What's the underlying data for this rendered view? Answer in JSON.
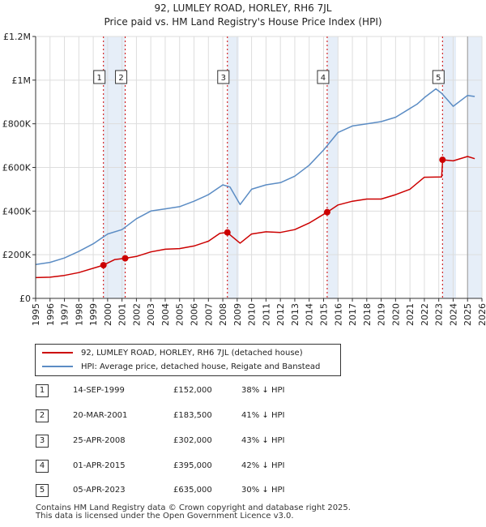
{
  "title": "92, LUMLEY ROAD, HORLEY, RH6 7JL",
  "subtitle": "Price paid vs. HM Land Registry's House Price Index (HPI)",
  "colors": {
    "property": "#cc0000",
    "hpi": "#5b8cc4",
    "shade": "#e6eef8",
    "grid": "#dddddd"
  },
  "chart_data": {
    "type": "line",
    "title": "92, LUMLEY ROAD, HORLEY, RH6 7JL",
    "x_range": [
      1995,
      2026
    ],
    "ylim": [
      0,
      1200000
    ],
    "y_ticks": [
      0,
      200000,
      400000,
      600000,
      800000,
      1000000,
      1200000
    ],
    "y_tick_labels": [
      "£0",
      "£200K",
      "£400K",
      "£600K",
      "£800K",
      "£1M",
      "£1.2M"
    ],
    "x_ticks": [
      1995,
      1996,
      1997,
      1998,
      1999,
      2000,
      2001,
      2002,
      2003,
      2004,
      2005,
      2006,
      2007,
      2008,
      2009,
      2010,
      2011,
      2012,
      2013,
      2014,
      2015,
      2016,
      2017,
      2018,
      2019,
      2020,
      2021,
      2022,
      2023,
      2024,
      2025,
      2026
    ],
    "grid": true,
    "series": [
      {
        "name": "92, LUMLEY ROAD, HORLEY, RH6 7JL (detached house)",
        "x": [
          1995,
          1996,
          1997,
          1998,
          1999.7,
          2000.5,
          2001.2,
          2002,
          2003,
          2004,
          2005,
          2006,
          2007,
          2007.8,
          2008.3,
          2009.2,
          2010,
          2011,
          2012,
          2013,
          2014,
          2015.25,
          2016,
          2017,
          2018,
          2019,
          2020,
          2021,
          2022,
          2023.2,
          2023.27,
          2024,
          2025,
          2025.5
        ],
        "values": [
          95000,
          97000,
          105000,
          118000,
          152000,
          178000,
          183500,
          192000,
          213000,
          225000,
          228000,
          240000,
          262000,
          298000,
          302000,
          253000,
          295000,
          305000,
          302000,
          315000,
          345000,
          395000,
          428000,
          445000,
          455000,
          455000,
          475000,
          500000,
          555000,
          556000,
          635000,
          630000,
          650000,
          640000
        ]
      },
      {
        "name": "HPI: Average price, detached house, Reigate and Banstead",
        "x": [
          1995,
          1996,
          1997,
          1998,
          1999,
          2000,
          2001,
          2002,
          2003,
          2004,
          2005,
          2006,
          2007,
          2008,
          2008.5,
          2009.2,
          2010,
          2011,
          2012,
          2013,
          2014,
          2015,
          2016,
          2017,
          2018,
          2019,
          2020,
          2021,
          2021.5,
          2022,
          2022.8,
          2023.2,
          2024,
          2025,
          2025.5
        ],
        "values": [
          155000,
          165000,
          185000,
          215000,
          250000,
          295000,
          315000,
          365000,
          400000,
          410000,
          420000,
          445000,
          475000,
          520000,
          510000,
          430000,
          500000,
          520000,
          530000,
          560000,
          610000,
          680000,
          760000,
          790000,
          800000,
          810000,
          830000,
          870000,
          890000,
          920000,
          960000,
          940000,
          880000,
          930000,
          925000
        ]
      }
    ],
    "sales": [
      {
        "label": "1",
        "x": 1999.71,
        "price": 152000
      },
      {
        "label": "2",
        "x": 2001.22,
        "price": 183500
      },
      {
        "label": "3",
        "x": 2008.32,
        "price": 302000
      },
      {
        "label": "4",
        "x": 2015.25,
        "price": 395000
      },
      {
        "label": "5",
        "x": 2023.26,
        "price": 635000
      }
    ],
    "shaded_x_ranges": [
      [
        1999.71,
        2001.22
      ],
      [
        2008.32,
        2009.1
      ],
      [
        2015.25,
        2016.0
      ],
      [
        2023.26,
        2024.2
      ],
      [
        2025.0,
        2026.0
      ]
    ]
  },
  "legend": [
    {
      "label": "92, LUMLEY ROAD, HORLEY, RH6 7JL (detached house)"
    },
    {
      "label": "HPI: Average price, detached house, Reigate and Banstead"
    }
  ],
  "transactions": [
    {
      "num": "1",
      "date": "14-SEP-1999",
      "price": "£152,000",
      "hpi": "38% ↓ HPI"
    },
    {
      "num": "2",
      "date": "20-MAR-2001",
      "price": "£183,500",
      "hpi": "41% ↓ HPI"
    },
    {
      "num": "3",
      "date": "25-APR-2008",
      "price": "£302,000",
      "hpi": "43% ↓ HPI"
    },
    {
      "num": "4",
      "date": "01-APR-2015",
      "price": "£395,000",
      "hpi": "42% ↓ HPI"
    },
    {
      "num": "5",
      "date": "05-APR-2023",
      "price": "£635,000",
      "hpi": "30% ↓ HPI"
    }
  ],
  "footer": {
    "line1": "Contains HM Land Registry data © Crown copyright and database right 2025.",
    "line2": "This data is licensed under the Open Government Licence v3.0."
  }
}
